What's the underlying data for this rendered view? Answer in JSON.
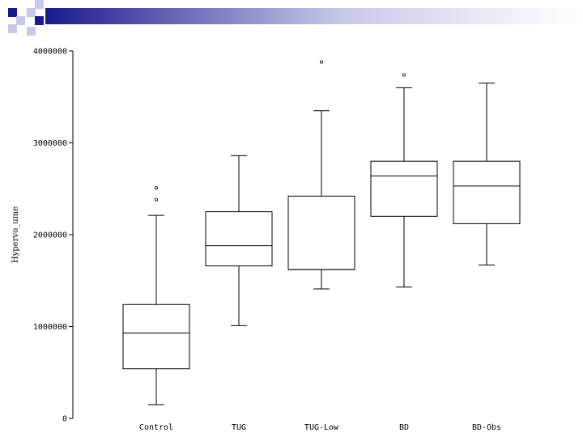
{
  "chart_data": {
    "type": "box",
    "xlabel": "",
    "ylabel": "Hypervo_ume",
    "ylim": [
      0,
      4000000
    ],
    "yticks": [
      0,
      1000000,
      2000000,
      3000000,
      4000000
    ],
    "ytick_labels": [
      "0",
      "1000000",
      "2000000",
      "3000000",
      "4000000"
    ],
    "grid": false,
    "legend": "none",
    "categories": [
      "Control",
      "TUG",
      "TUG-Low",
      "BD",
      "BD-Obs"
    ],
    "boxes": [
      {
        "category": "Control",
        "whisker_low": 150000,
        "q1": 540000,
        "median": 930000,
        "q3": 1240000,
        "whisker_high": 2210000,
        "outliers": [
          2380000,
          2510000
        ]
      },
      {
        "category": "TUG",
        "whisker_low": 1010000,
        "q1": 1660000,
        "median": 1880000,
        "q3": 2250000,
        "whisker_high": 2860000,
        "outliers": []
      },
      {
        "category": "TUG-Low",
        "whisker_low": 1410000,
        "q1": 1620000,
        "median": 1620000,
        "q3": 2420000,
        "whisker_high": 3350000,
        "outliers": [
          3880000
        ]
      },
      {
        "category": "BD",
        "whisker_low": 1430000,
        "q1": 2200000,
        "median": 2640000,
        "q3": 2800000,
        "whisker_high": 3600000,
        "outliers": [
          3740000
        ]
      },
      {
        "category": "BD-Obs",
        "whisker_low": 1670000,
        "q1": 2120000,
        "median": 2530000,
        "q3": 2800000,
        "whisker_high": 3650000,
        "outliers": []
      }
    ]
  },
  "deco": {
    "dark": "#1a1a8c",
    "light": "#c8c8e8"
  }
}
